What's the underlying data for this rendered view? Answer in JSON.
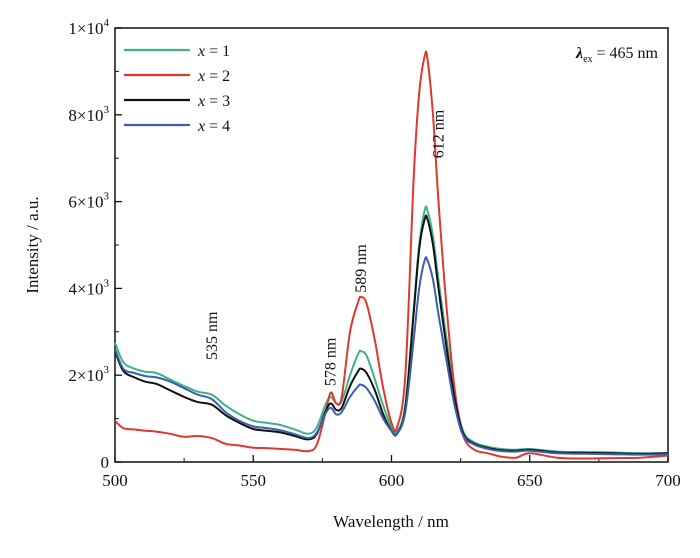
{
  "chart_data": {
    "type": "line",
    "xlabel": "Wavelength / nm",
    "ylabel": "Intensity / a.u.",
    "xlim": [
      500,
      700
    ],
    "ylim": [
      0,
      10000
    ],
    "x_ticks": [
      500,
      550,
      600,
      650,
      700
    ],
    "x_tick_labels": [
      "500",
      "550",
      "600",
      "650",
      "700"
    ],
    "y_ticks": [
      0,
      2000,
      4000,
      6000,
      8000,
      10000
    ],
    "y_tick_labels": [
      {
        "base": "0",
        "exp": ""
      },
      {
        "base": "2×10",
        "exp": "3"
      },
      {
        "base": "4×10",
        "exp": "3"
      },
      {
        "base": "6×10",
        "exp": "3"
      },
      {
        "base": "8×10",
        "exp": "3"
      },
      {
        "base": "1×10",
        "exp": "4"
      }
    ],
    "grid": false,
    "legend_position": "top-left",
    "excitation_label": {
      "symbol": "λ",
      "subscript": "ex",
      "text": " = 465 nm"
    },
    "annotations": [
      {
        "text": "535 nm",
        "x": 535,
        "y": 2350
      },
      {
        "text": "578 nm",
        "x": 578,
        "y": 1750
      },
      {
        "text": "589 nm",
        "x": 589,
        "y": 3900
      },
      {
        "text": "612 nm",
        "x": 617,
        "y": 7000
      }
    ],
    "series": [
      {
        "name": "x = 1",
        "var": "x",
        "value": "1",
        "color": "#3fb383",
        "x": [
          500,
          503,
          507,
          511,
          515,
          520,
          525,
          530,
          535,
          540,
          545,
          550,
          555,
          560,
          565,
          570,
          573,
          576,
          578,
          580,
          582,
          585,
          588,
          589,
          591,
          594,
          597,
          600,
          602,
          605,
          608,
          610,
          612,
          613,
          615,
          617,
          620,
          623,
          626,
          630,
          635,
          640,
          645,
          650,
          660,
          670,
          680,
          690,
          700
        ],
        "values": [
          2750,
          2300,
          2150,
          2080,
          2050,
          1900,
          1750,
          1620,
          1550,
          1300,
          1100,
          950,
          900,
          850,
          750,
          650,
          800,
          1300,
          1500,
          1350,
          1400,
          2000,
          2500,
          2550,
          2450,
          1900,
          1300,
          800,
          700,
          1300,
          3500,
          5000,
          5800,
          5800,
          5200,
          4200,
          2800,
          1500,
          700,
          450,
          350,
          300,
          280,
          300,
          240,
          230,
          220,
          200,
          210
        ]
      },
      {
        "name": "x = 2",
        "var": "x",
        "value": "2",
        "color": "#e0392b",
        "x": [
          500,
          503,
          507,
          511,
          515,
          520,
          525,
          530,
          535,
          540,
          545,
          550,
          555,
          560,
          565,
          570,
          573,
          576,
          578,
          580,
          582,
          585,
          588,
          589,
          591,
          594,
          597,
          600,
          602,
          605,
          608,
          610,
          612,
          613,
          615,
          617,
          620,
          623,
          626,
          630,
          635,
          640,
          645,
          650,
          660,
          670,
          680,
          690,
          700
        ],
        "values": [
          950,
          780,
          750,
          720,
          700,
          650,
          580,
          600,
          550,
          420,
          380,
          330,
          320,
          300,
          280,
          250,
          400,
          1100,
          1600,
          1350,
          1500,
          3000,
          3700,
          3800,
          3650,
          2800,
          1700,
          900,
          800,
          2000,
          6500,
          8500,
          9350,
          9300,
          8000,
          6000,
          3500,
          1600,
          600,
          280,
          200,
          120,
          100,
          200,
          100,
          80,
          90,
          100,
          150
        ]
      },
      {
        "name": "x = 3",
        "var": "x",
        "value": "3",
        "color": "#111111",
        "x": [
          500,
          503,
          507,
          511,
          515,
          520,
          525,
          530,
          535,
          540,
          545,
          550,
          555,
          560,
          565,
          570,
          573,
          576,
          578,
          580,
          582,
          585,
          588,
          589,
          591,
          594,
          597,
          600,
          602,
          605,
          608,
          610,
          612,
          613,
          615,
          617,
          620,
          623,
          626,
          630,
          635,
          640,
          645,
          650,
          660,
          670,
          680,
          690,
          700
        ],
        "values": [
          2550,
          2100,
          1950,
          1850,
          1800,
          1650,
          1500,
          1380,
          1320,
          1080,
          900,
          760,
          720,
          680,
          600,
          520,
          650,
          1150,
          1350,
          1200,
          1250,
          1750,
          2100,
          2150,
          2050,
          1650,
          1100,
          720,
          650,
          1250,
          3400,
          4900,
          5600,
          5600,
          5000,
          4000,
          2600,
          1400,
          650,
          420,
          320,
          270,
          260,
          280,
          220,
          210,
          200,
          190,
          200
        ]
      },
      {
        "name": "x = 4",
        "var": "x",
        "value": "4",
        "color": "#3a5fb0",
        "x": [
          500,
          503,
          507,
          511,
          515,
          520,
          525,
          530,
          535,
          540,
          545,
          550,
          555,
          560,
          565,
          570,
          573,
          576,
          578,
          580,
          582,
          585,
          588,
          589,
          591,
          594,
          597,
          600,
          602,
          605,
          608,
          610,
          612,
          613,
          615,
          617,
          620,
          623,
          626,
          630,
          635,
          640,
          645,
          650,
          660,
          670,
          680,
          690,
          700
        ],
        "values": [
          2600,
          2150,
          2050,
          1980,
          1950,
          1850,
          1700,
          1550,
          1450,
          1150,
          950,
          820,
          780,
          730,
          640,
          550,
          680,
          1100,
          1250,
          1100,
          1150,
          1500,
          1750,
          1780,
          1700,
          1400,
          1000,
          720,
          650,
          1150,
          2800,
          4000,
          4650,
          4650,
          4200,
          3400,
          2300,
          1250,
          600,
          400,
          300,
          250,
          240,
          260,
          200,
          190,
          180,
          170,
          180
        ]
      }
    ]
  }
}
